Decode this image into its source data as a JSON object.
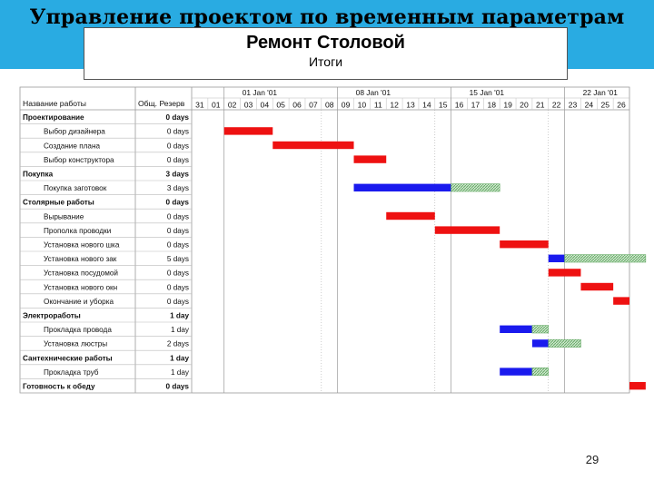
{
  "slide": {
    "title": "Управление проектом по временным параметрам",
    "box_title": "Ремонт Столовой",
    "box_subtitle": "Итоги",
    "page_number": "29"
  },
  "colors": {
    "band": "#29abe2",
    "critical": "#ee1111",
    "task": "#1a1aee",
    "slack": "#66aa66",
    "grid": "#c8c8c8"
  },
  "chart_data": {
    "type": "gantt",
    "columns": [
      "Название работы",
      "Общ. Резерв"
    ],
    "weeks": [
      {
        "label": "01 Jan '01",
        "start_day": 1
      },
      {
        "label": "08 Jan '01",
        "start_day": 8
      },
      {
        "label": "15 Jan '01",
        "start_day": 15
      },
      {
        "label": "22 Jan '01",
        "start_day": 22
      }
    ],
    "days": [
      "31",
      "01",
      "02",
      "03",
      "04",
      "05",
      "06",
      "07",
      "08",
      "09",
      "10",
      "11",
      "12",
      "13",
      "14",
      "15",
      "16",
      "17",
      "18",
      "19",
      "20",
      "21",
      "22",
      "23",
      "24",
      "25",
      "26"
    ],
    "tasks": [
      {
        "name": "Проектирование",
        "slack": "0 days",
        "summary": true,
        "bars": []
      },
      {
        "name": "Выбор дизайнера",
        "slack": "0 days",
        "summary": false,
        "bars": [
          {
            "kind": "critical",
            "start": 1,
            "end": 4
          }
        ]
      },
      {
        "name": "Создание плана",
        "slack": "0 days",
        "summary": false,
        "bars": [
          {
            "kind": "critical",
            "start": 4,
            "end": 9
          }
        ]
      },
      {
        "name": "Выбор конструктора",
        "slack": "0 days",
        "summary": false,
        "bars": [
          {
            "kind": "critical",
            "start": 9,
            "end": 11
          }
        ]
      },
      {
        "name": "Покупка",
        "slack": "3 days",
        "summary": true,
        "bars": []
      },
      {
        "name": "Покупка заготовок",
        "slack": "3 days",
        "summary": false,
        "bars": [
          {
            "kind": "task",
            "start": 9,
            "end": 15
          },
          {
            "kind": "slack",
            "start": 15,
            "end": 18
          }
        ]
      },
      {
        "name": "Столярные работы",
        "slack": "0 days",
        "summary": true,
        "bars": []
      },
      {
        "name": "Вырывание",
        "slack": "0 days",
        "summary": false,
        "bars": [
          {
            "kind": "critical",
            "start": 11,
            "end": 14
          }
        ]
      },
      {
        "name": "Прополка проводки",
        "slack": "0 days",
        "summary": false,
        "bars": [
          {
            "kind": "critical",
            "start": 14,
            "end": 18
          }
        ]
      },
      {
        "name": "Установка нового шка",
        "slack": "0 days",
        "summary": false,
        "bars": [
          {
            "kind": "critical",
            "start": 18,
            "end": 21
          }
        ]
      },
      {
        "name": "Установка нового зак",
        "slack": "5 days",
        "summary": false,
        "bars": [
          {
            "kind": "task",
            "start": 21,
            "end": 22
          },
          {
            "kind": "slack",
            "start": 22,
            "end": 27
          }
        ]
      },
      {
        "name": "Установка посудомой",
        "slack": "0 days",
        "summary": false,
        "bars": [
          {
            "kind": "critical",
            "start": 21,
            "end": 23
          }
        ]
      },
      {
        "name": "Установка нового окн",
        "slack": "0 days",
        "summary": false,
        "bars": [
          {
            "kind": "critical",
            "start": 23,
            "end": 25
          }
        ]
      },
      {
        "name": "Окончание и уборка",
        "slack": "0 days",
        "summary": false,
        "bars": [
          {
            "kind": "critical",
            "start": 25,
            "end": 26
          }
        ]
      },
      {
        "name": "Электроработы",
        "slack": "1 day",
        "summary": true,
        "bars": []
      },
      {
        "name": "Прокладка провода",
        "slack": "1 day",
        "summary": false,
        "bars": [
          {
            "kind": "task",
            "start": 18,
            "end": 20
          },
          {
            "kind": "slack",
            "start": 20,
            "end": 21
          }
        ]
      },
      {
        "name": "Установка люстры",
        "slack": "2 days",
        "summary": false,
        "bars": [
          {
            "kind": "task",
            "start": 20,
            "end": 21
          },
          {
            "kind": "slack",
            "start": 21,
            "end": 23
          }
        ]
      },
      {
        "name": "Сантехнические работы",
        "slack": "1 day",
        "summary": true,
        "bars": []
      },
      {
        "name": "Прокладка труб",
        "slack": "1 day",
        "summary": false,
        "bars": [
          {
            "kind": "task",
            "start": 18,
            "end": 20
          },
          {
            "kind": "slack",
            "start": 20,
            "end": 21
          }
        ]
      },
      {
        "name": "Готовность к обеду",
        "slack": "0 days",
        "summary": true,
        "bars": [
          {
            "kind": "critical",
            "start": 26,
            "end": 27
          }
        ]
      }
    ]
  }
}
